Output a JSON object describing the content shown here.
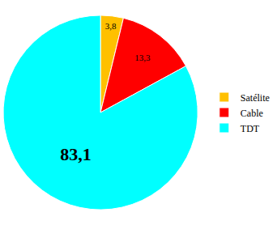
{
  "chart_data": {
    "type": "pie",
    "categories": [
      "Satélite",
      "Cable",
      "TDT"
    ],
    "values": [
      3.8,
      13.3,
      83.1
    ],
    "value_labels": [
      "3,8",
      "13,3",
      "83,1"
    ],
    "colors": [
      "#FFC000",
      "#FF0000",
      "#00FFFF"
    ],
    "data_labels": true,
    "legend": "right"
  }
}
